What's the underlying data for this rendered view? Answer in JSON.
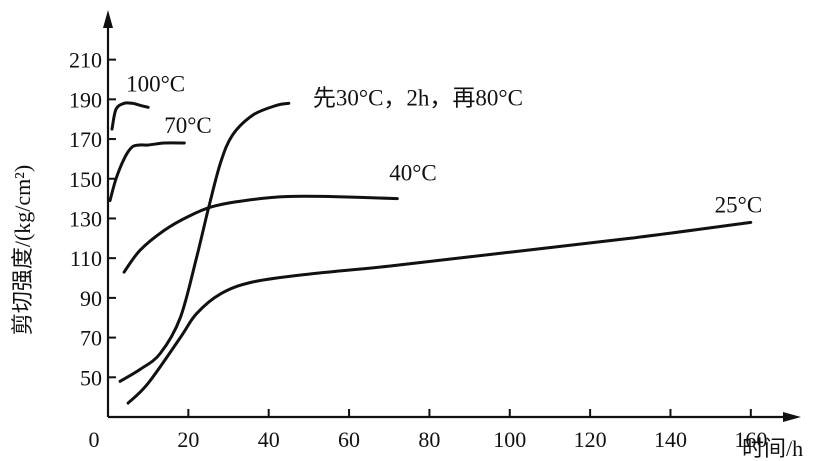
{
  "chart_data": {
    "type": "line",
    "title": "",
    "xlabel": "时间/h",
    "ylabel": "剪切强度/(kg/cm²)",
    "xlim": [
      0,
      170
    ],
    "ylim": [
      30,
      235
    ],
    "x_ticks": [
      0,
      20,
      40,
      60,
      80,
      100,
      120,
      140,
      160
    ],
    "y_ticks": [
      50,
      70,
      90,
      110,
      130,
      150,
      170,
      190,
      210
    ],
    "grid": false,
    "legend": "none",
    "series": [
      {
        "name": "100°C",
        "x": [
          1,
          2,
          4,
          6,
          8,
          10
        ],
        "y": [
          175,
          185,
          188,
          188,
          187,
          186
        ]
      },
      {
        "name": "70°C",
        "x": [
          0.5,
          2,
          4,
          6,
          8,
          10,
          14,
          19
        ],
        "y": [
          139,
          150,
          160,
          166,
          167,
          167,
          168,
          168
        ]
      },
      {
        "name": "先30°C，2h，再80°C",
        "x": [
          3,
          8,
          13,
          18,
          22,
          25,
          28,
          31,
          36,
          42,
          45
        ],
        "y": [
          48,
          54,
          62,
          80,
          110,
          135,
          158,
          172,
          182,
          187,
          188
        ]
      },
      {
        "name": "40°C",
        "x": [
          4,
          8,
          14,
          20,
          26,
          34,
          44,
          56,
          72
        ],
        "y": [
          103,
          114,
          124,
          131,
          136,
          139,
          141,
          141,
          140
        ]
      },
      {
        "name": "25°C",
        "x": [
          5,
          10,
          18,
          22,
          28,
          36,
          50,
          70,
          100,
          130,
          160
        ],
        "y": [
          37,
          47,
          70,
          82,
          92,
          98,
          102,
          106,
          113,
          120,
          128
        ]
      }
    ],
    "labels": [
      {
        "text": "100°C",
        "at": [
          4.5,
          194
        ]
      },
      {
        "text": "70°C",
        "at": [
          14,
          173
        ]
      },
      {
        "text": "先30°C，2h，再80°C",
        "at": [
          51,
          187
        ]
      },
      {
        "text": "40°C",
        "at": [
          70,
          149
        ]
      },
      {
        "text": "25°C",
        "at": [
          151,
          133
        ]
      }
    ]
  }
}
